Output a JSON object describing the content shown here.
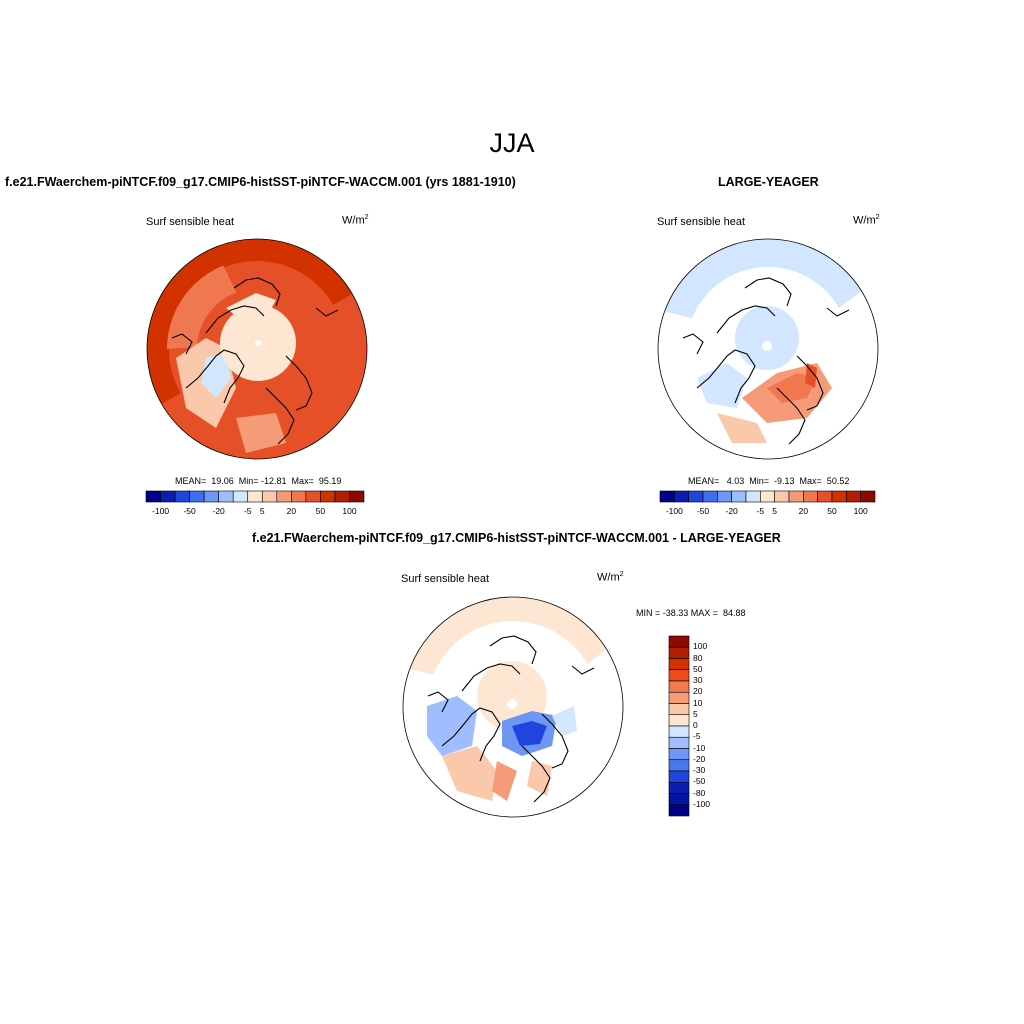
{
  "title": "JJA",
  "panels": [
    {
      "title": "f.e21.FWaerchem-piNTCF.f09_g17.CMIP6-histSST-piNTCF-WACCM.001 (yrs 1881-1910)",
      "variable": "Surf sensible heat",
      "units": "W/m",
      "units_exp": "2",
      "stats": "MEAN=  19.06  Min= -12.81  Max=  95.19"
    },
    {
      "title": "LARGE-YEAGER",
      "variable": "Surf sensible heat",
      "units": "W/m",
      "units_exp": "2",
      "stats": "MEAN=   4.03  Min=  -9.13  Max=  50.52"
    },
    {
      "title": "f.e21.FWaerchem-piNTCF.f09_g17.CMIP6-histSST-piNTCF-WACCM.001 - LARGE-YEAGER",
      "variable": "Surf sensible heat",
      "units": "W/m",
      "units_exp": "2",
      "stats": "MIN = -38.33 MAX =  84.88"
    }
  ],
  "colorbar_horizontal": {
    "colors": [
      "#00008b",
      "#0a1eb4",
      "#1e46dc",
      "#3c6ef0",
      "#6e96f5",
      "#a0beff",
      "#d2e6ff",
      "#fde6d2",
      "#fac8aa",
      "#f59b78",
      "#f07850",
      "#e65028",
      "#d23200",
      "#b41e00",
      "#8c0a00"
    ],
    "ticks": [
      "-100",
      "-50",
      "-20",
      "-5",
      "5",
      "20",
      "50",
      "100"
    ]
  },
  "colorbar_vertical": {
    "colors": [
      "#8c0a00",
      "#b41e00",
      "#d23200",
      "#ee4a1c",
      "#f57850",
      "#f59b78",
      "#fac8aa",
      "#fde6d2",
      "#d2e6ff",
      "#a0beff",
      "#6e96f5",
      "#4a78f0",
      "#1e46dc",
      "#0a1eb4",
      "#0014a0",
      "#00008b"
    ],
    "ticks": [
      "100",
      "80",
      "50",
      "30",
      "20",
      "10",
      "5",
      "0",
      "-5",
      "-10",
      "-20",
      "-30",
      "-50",
      "-80",
      "-100"
    ]
  }
}
